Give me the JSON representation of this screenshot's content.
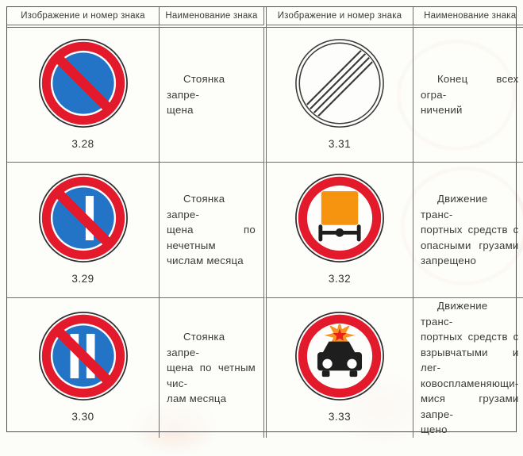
{
  "header": {
    "columns": [
      "Изображение и номер знака",
      "Наименование знака",
      "Изображение и номер знака",
      "Наименование знака"
    ]
  },
  "rows": [
    {
      "left": {
        "sign_icon": "no-parking-sign-icon",
        "number": "3.28",
        "name_lines": [
          "Стоянка запре-",
          "щена"
        ]
      },
      "right": {
        "sign_icon": "end-of-all-restrictions-sign-icon",
        "number": "3.31",
        "name_lines": [
          "Конец всех огра-",
          "ничений"
        ]
      }
    },
    {
      "left": {
        "sign_icon": "no-parking-odd-days-sign-icon",
        "number": "3.29",
        "name_lines": [
          "Стоянка запре-",
          "щена по нечетным",
          "числам месяца"
        ]
      },
      "right": {
        "sign_icon": "dangerous-goods-prohibited-sign-icon",
        "number": "3.32",
        "name_lines": [
          "Движение транс-",
          "портных средств с",
          "опасными грузами",
          "запрещено"
        ]
      }
    },
    {
      "left": {
        "sign_icon": "no-parking-even-days-sign-icon",
        "number": "3.30",
        "name_lines": [
          "Стоянка запре-",
          "щена по четным чис-",
          "лам месяца"
        ]
      },
      "right": {
        "sign_icon": "explosive-goods-prohibited-sign-icon",
        "number": "3.33",
        "name_lines": [
          "Движение транс-",
          "портных средств с",
          "взрывчатыми и лег-",
          "ковоспламеняющи-",
          "мися грузами запре-",
          "щено"
        ]
      }
    }
  ],
  "colors": {
    "prohibition_red": "#e21a2c",
    "sign_blue": "#2374c6",
    "cargo_orange": "#f6930f",
    "flame_orange": "#f79422",
    "flame_red": "#e8211d",
    "sign_outline_black": "#2e2e2e",
    "table_border_gray": "#6e6e6e"
  }
}
